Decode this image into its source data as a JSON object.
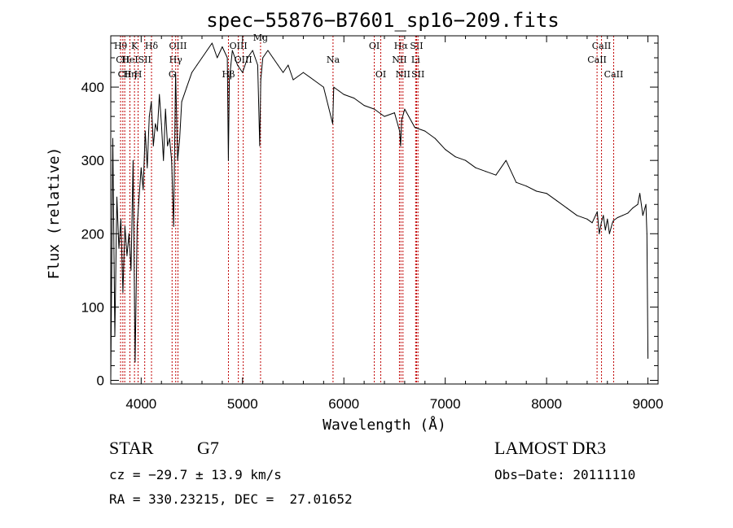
{
  "chart_data": {
    "type": "line",
    "title": "spec−55876−B7601_sp16−209.fits",
    "xlabel": "Wavelength (Å)",
    "ylabel": "Flux (relative)",
    "xlim": [
      3700,
      9100
    ],
    "ylim": [
      -5,
      470
    ],
    "xticks": [
      4000,
      5000,
      6000,
      7000,
      8000,
      9000
    ],
    "yticks": [
      0,
      100,
      200,
      300,
      400
    ],
    "series": [
      {
        "name": "flux",
        "x": [
          3700,
          3720,
          3740,
          3760,
          3780,
          3800,
          3820,
          3840,
          3860,
          3880,
          3900,
          3920,
          3940,
          3960,
          3980,
          4000,
          4020,
          4040,
          4060,
          4080,
          4100,
          4120,
          4140,
          4160,
          4180,
          4200,
          4220,
          4240,
          4260,
          4280,
          4300,
          4320,
          4340,
          4360,
          4380,
          4400,
          4450,
          4500,
          4550,
          4600,
          4650,
          4700,
          4750,
          4800,
          4850,
          4860,
          4870,
          4900,
          4950,
          5000,
          5050,
          5100,
          5150,
          5170,
          5180,
          5200,
          5250,
          5300,
          5350,
          5400,
          5450,
          5500,
          5600,
          5700,
          5800,
          5890,
          5900,
          5950,
          6000,
          6100,
          6200,
          6300,
          6400,
          6500,
          6550,
          6560,
          6570,
          6600,
          6700,
          6800,
          6900,
          7000,
          7100,
          7200,
          7300,
          7400,
          7500,
          7600,
          7700,
          7800,
          7900,
          8000,
          8100,
          8200,
          8300,
          8400,
          8450,
          8500,
          8520,
          8540,
          8560,
          8580,
          8600,
          8620,
          8650,
          8660,
          8700,
          8750,
          8800,
          8850,
          8900,
          8920,
          8950,
          8980,
          8990,
          9000
        ],
        "y": [
          0,
          330,
          60,
          250,
          180,
          220,
          120,
          210,
          170,
          200,
          150,
          300,
          25,
          210,
          250,
          290,
          260,
          340,
          290,
          360,
          380,
          320,
          350,
          340,
          390,
          350,
          300,
          370,
          320,
          330,
          300,
          210,
          420,
          300,
          330,
          380,
          400,
          420,
          430,
          440,
          450,
          460,
          440,
          455,
          440,
          300,
          410,
          450,
          430,
          420,
          440,
          450,
          430,
          320,
          410,
          440,
          450,
          440,
          430,
          420,
          430,
          410,
          420,
          410,
          400,
          350,
          400,
          395,
          390,
          385,
          375,
          370,
          360,
          365,
          340,
          320,
          355,
          370,
          345,
          340,
          330,
          315,
          305,
          300,
          290,
          285,
          280,
          300,
          270,
          265,
          258,
          255,
          245,
          235,
          225,
          220,
          215,
          230,
          200,
          215,
          225,
          205,
          220,
          200,
          215,
          218,
          222,
          225,
          228,
          235,
          240,
          255,
          225,
          240,
          200,
          30
        ]
      }
    ],
    "lines": [
      {
        "label": "Hθ",
        "x": 3797,
        "row": 1
      },
      {
        "label": "CII",
        "x": 3819,
        "row": 2
      },
      {
        "label": "CII",
        "x": 3838,
        "row": 3
      },
      {
        "label": "K",
        "x": 3934,
        "row": 1
      },
      {
        "label": "HeI",
        "x": 3889,
        "row": 2
      },
      {
        "label": "Hη",
        "x": 3889,
        "row": 3
      },
      {
        "label": "SII",
        "x": 4035,
        "row": 2
      },
      {
        "label": "H",
        "x": 3970,
        "row": 3
      },
      {
        "label": "Hδ",
        "x": 4102,
        "row": 1
      },
      {
        "label": "OIII",
        "x": 4363,
        "row": 1
      },
      {
        "label": "Hγ",
        "x": 4341,
        "row": 2
      },
      {
        "label": "G",
        "x": 4305,
        "row": 3
      },
      {
        "label": "OIII",
        "x": 4959,
        "row": 1
      },
      {
        "label": "OIII",
        "x": 5007,
        "row": 2
      },
      {
        "label": "Hβ",
        "x": 4861,
        "row": 3
      },
      {
        "label": "Mg",
        "x": 5178,
        "row": 0
      },
      {
        "label": "Na",
        "x": 5893,
        "row": 2
      },
      {
        "label": "OI",
        "x": 6300,
        "row": 1
      },
      {
        "label": "OI",
        "x": 6364,
        "row": 3
      },
      {
        "label": "Hα",
        "x": 6563,
        "row": 1
      },
      {
        "label": "NII",
        "x": 6548,
        "row": 2
      },
      {
        "label": "NII",
        "x": 6583,
        "row": 3
      },
      {
        "label": "SII",
        "x": 6717,
        "row": 1
      },
      {
        "label": "Li",
        "x": 6708,
        "row": 2
      },
      {
        "label": "SII",
        "x": 6731,
        "row": 3
      },
      {
        "label": "CaII",
        "x": 8542,
        "row": 1
      },
      {
        "label": "CaII",
        "x": 8498,
        "row": 2
      },
      {
        "label": "CaII",
        "x": 8662,
        "row": 3
      }
    ]
  },
  "info": {
    "object_class": "STAR",
    "subclass": "G7",
    "survey": "LAMOST DR3",
    "redshift": "cz = −29.7 ± 13.9 km/s",
    "obs_date": "Obs−Date: 20111110",
    "coords": "RA = 330.23215, DEC =  27.01652"
  },
  "colors": {
    "spectrum": "#000000",
    "lines": "#c00000"
  }
}
